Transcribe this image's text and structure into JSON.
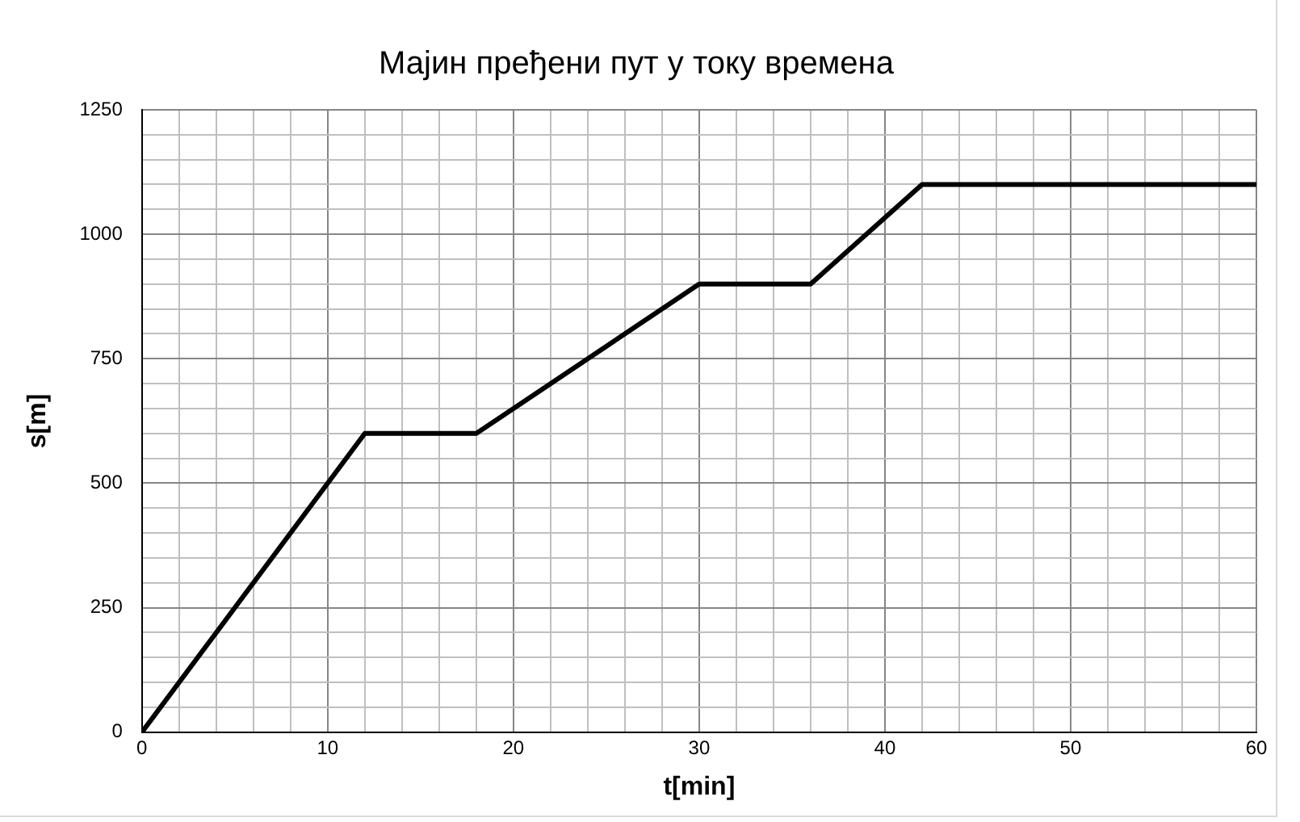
{
  "chart_data": {
    "type": "line",
    "title": "Мајин пређени пут у току времена",
    "xlabel": "t[min]",
    "ylabel": "s[m]",
    "x": [
      0,
      12,
      18,
      30,
      36,
      42,
      60
    ],
    "series": [
      {
        "color": "#000000",
        "values": [
          0,
          600,
          600,
          900,
          900,
          1100,
          1100
        ]
      }
    ],
    "xlim": [
      0,
      60
    ],
    "xticks": [
      0,
      {
        "value": 2,
        "label": null
      },
      {
        "value": 4,
        "label": null
      },
      {
        "value": 6,
        "label": null
      },
      {
        "value": 8,
        "label": null
      },
      10,
      {
        "value": 12,
        "label": null
      },
      {
        "value": 14,
        "label": null
      },
      {
        "value": 16,
        "label": null
      },
      {
        "value": 18,
        "label": null
      },
      20,
      {
        "value": 22,
        "label": null
      },
      {
        "value": 24,
        "label": null
      },
      {
        "value": 26,
        "label": null
      },
      {
        "value": 28,
        "label": null
      },
      30,
      {
        "value": 32,
        "label": null
      },
      {
        "value": 34,
        "label": null
      },
      {
        "value": 36,
        "label": null
      },
      {
        "value": 38,
        "label": null
      },
      40,
      {
        "value": 42,
        "label": null
      },
      {
        "value": 44,
        "label": null
      },
      {
        "value": 46,
        "label": null
      },
      {
        "value": 48,
        "label": null
      },
      50,
      {
        "value": 52,
        "label": null
      },
      {
        "value": 54,
        "label": null
      },
      {
        "value": 56,
        "label": null
      },
      {
        "value": 58,
        "label": null
      },
      60
    ],
    "ylim": [
      0,
      1250
    ],
    "yticks": [
      0,
      {
        "value": 50,
        "label": null
      },
      {
        "value": 100,
        "label": null
      },
      {
        "value": 150,
        "label": null
      },
      {
        "value": 200,
        "label": null
      },
      250,
      {
        "value": 300,
        "label": null
      },
      {
        "value": 350,
        "label": null
      },
      {
        "value": 400,
        "label": null
      },
      {
        "value": 450,
        "label": null
      },
      500,
      {
        "value": 550,
        "label": null
      },
      {
        "value": 600,
        "label": null
      },
      {
        "value": 650,
        "label": null
      },
      {
        "value": 700,
        "label": null
      },
      750,
      {
        "value": 800,
        "label": null
      },
      {
        "value": 850,
        "label": null
      },
      {
        "value": 900,
        "label": null
      },
      {
        "value": 950,
        "label": null
      },
      1000,
      {
        "value": 1050,
        "label": null
      },
      {
        "value": 1100,
        "label": null
      },
      {
        "value": 1150,
        "label": null
      },
      {
        "value": 1200,
        "label": null
      },
      1250
    ],
    "grid": true,
    "legend": false,
    "marker": "none",
    "line_style": "solid"
  }
}
